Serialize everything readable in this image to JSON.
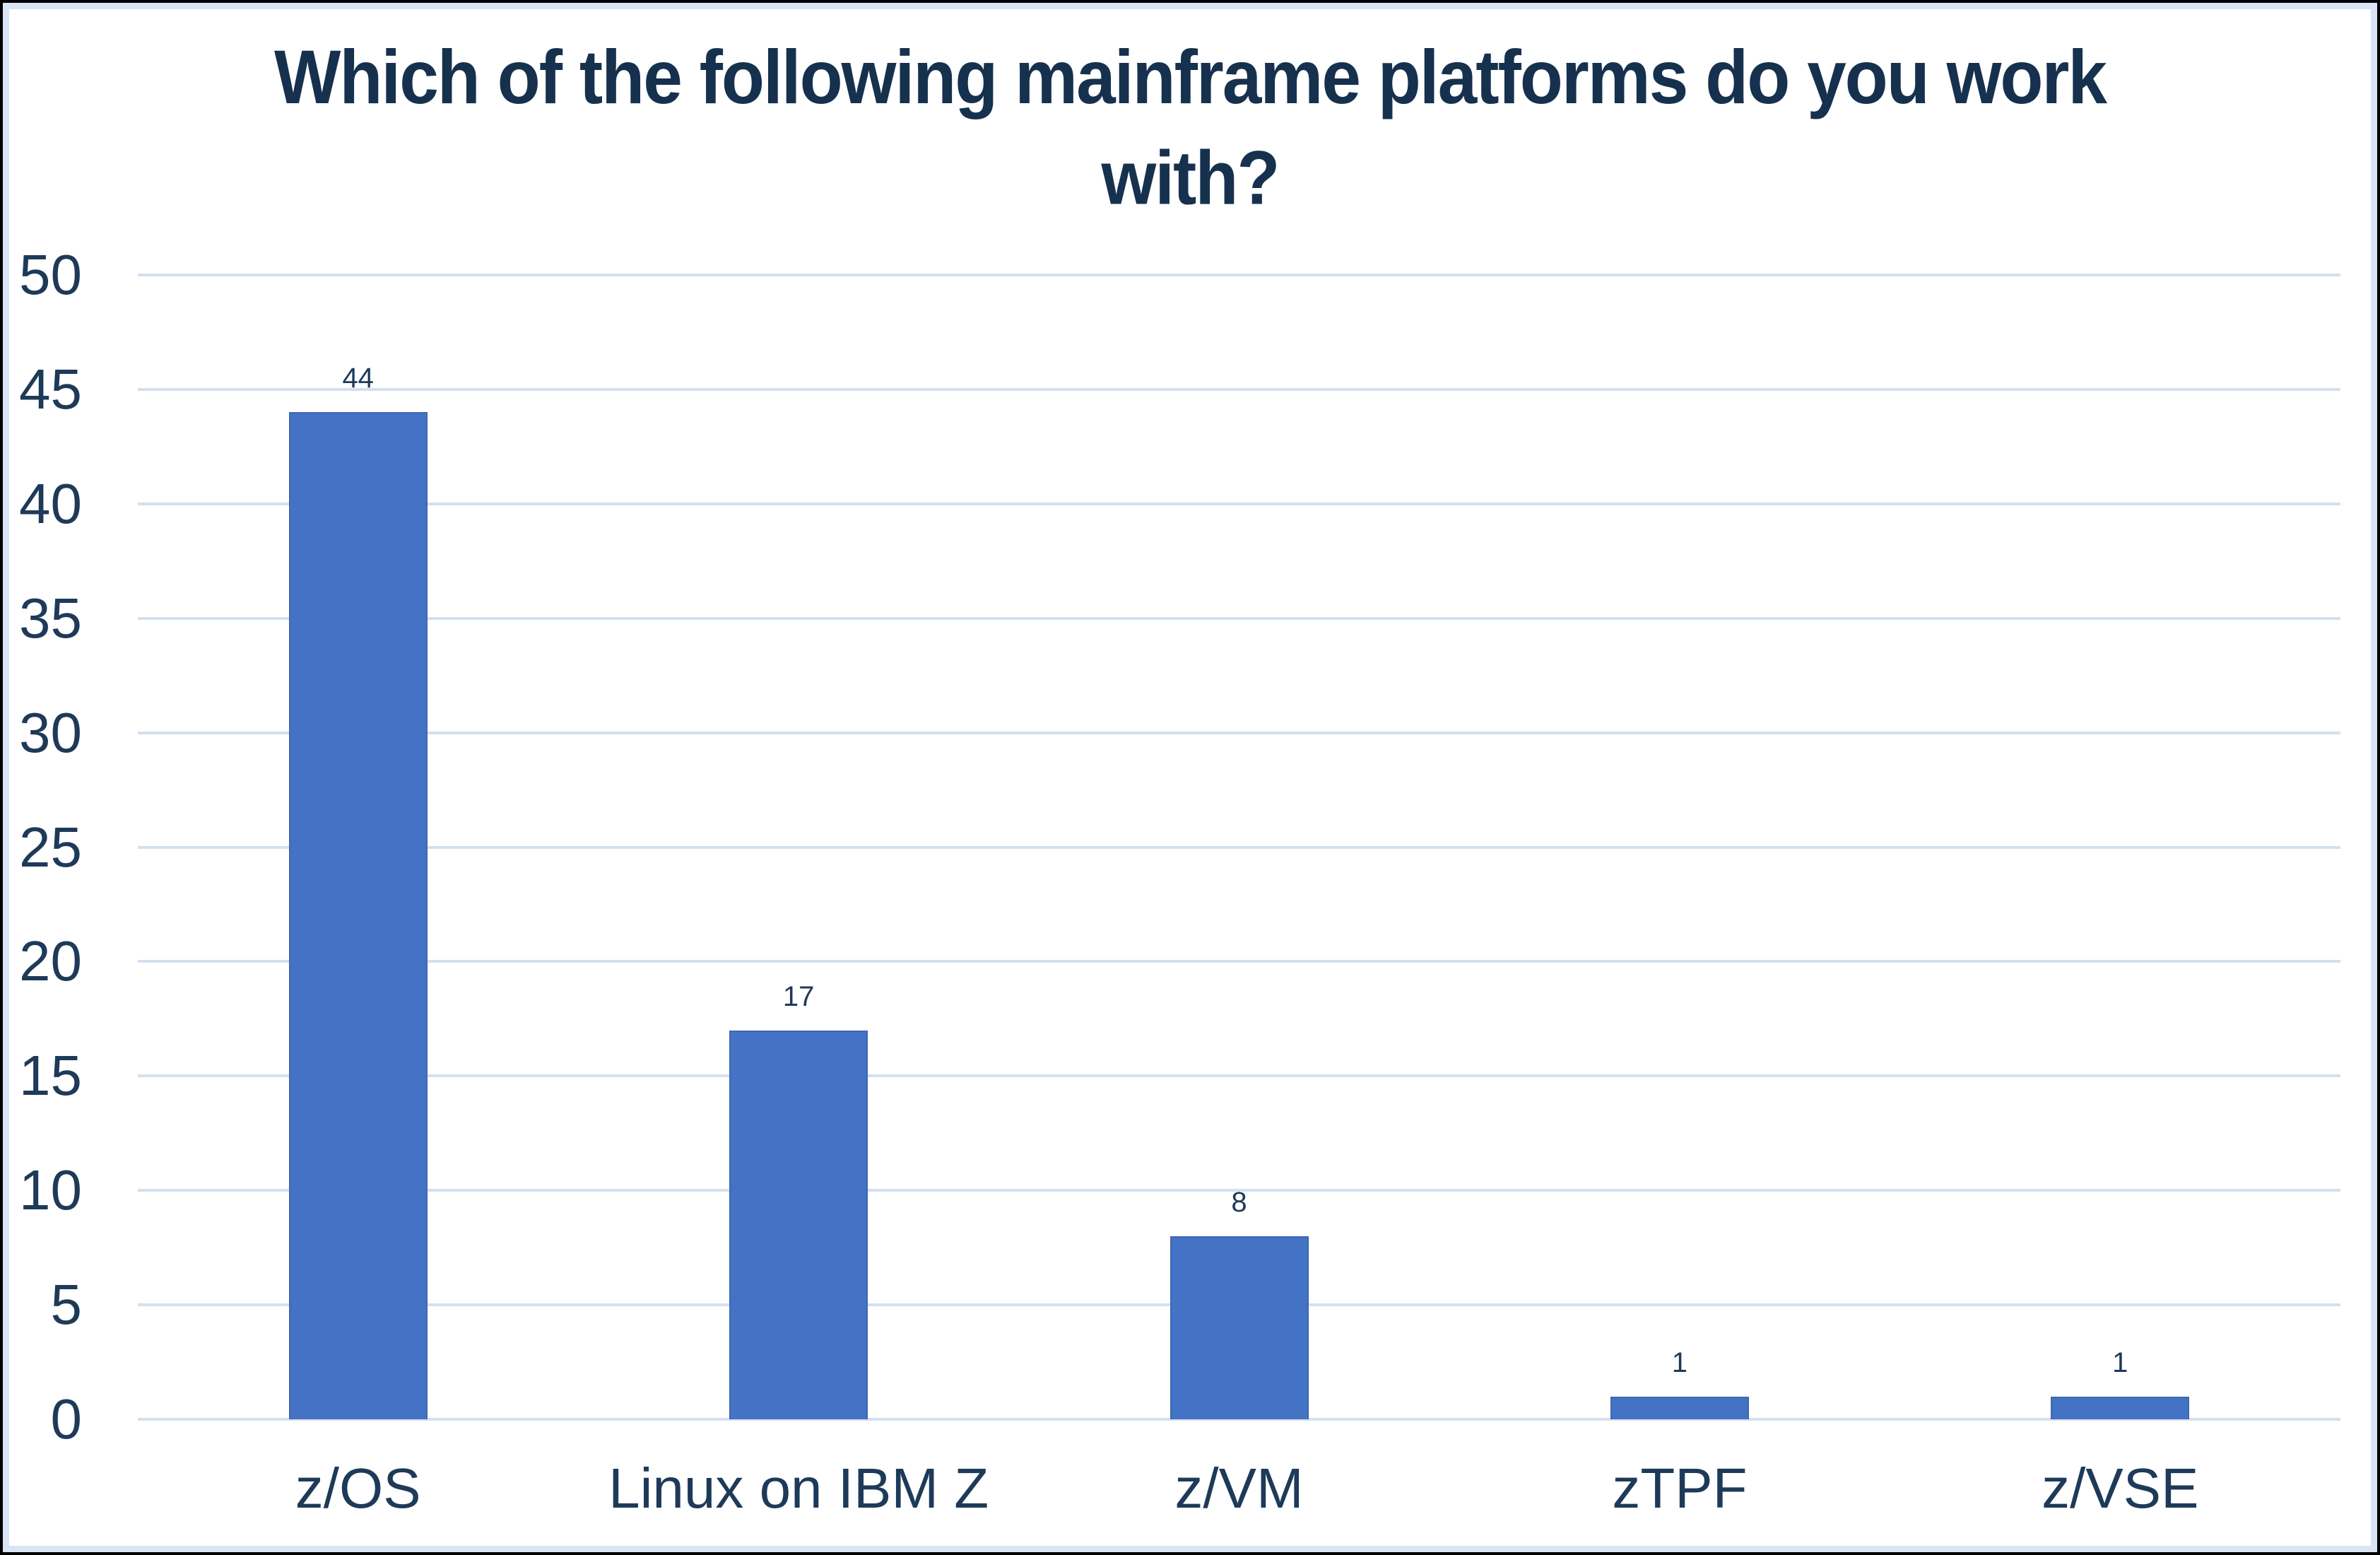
{
  "chart_data": {
    "type": "bar",
    "title": "Which of the following mainframe platforms do you work with?",
    "title_lines": [
      "Which of the following mainframe platforms do you work",
      "with?"
    ],
    "categories": [
      "z/OS",
      "Linux on IBM Z",
      "z/VM",
      "zTPF",
      "z/VSE"
    ],
    "values": [
      44,
      17,
      8,
      1,
      1
    ],
    "value_labels": [
      "44",
      "17",
      "8",
      "1",
      "1"
    ],
    "xlabel": "",
    "ylabel": "",
    "ylim": [
      0,
      50
    ],
    "yticks": [
      0,
      5,
      10,
      15,
      20,
      25,
      30,
      35,
      40,
      45,
      50
    ],
    "grid": true,
    "legend_position": "none"
  },
  "colors": {
    "bar_fill": "#4472c4",
    "bar_border": "#3e68b2",
    "gridline": "#d3e0f1",
    "axis_text": "#1e3a59",
    "title_text": "#16314e",
    "frame_outer": "#000000",
    "frame_inner_band": "#d9e5f5",
    "background": "#ffffff"
  }
}
